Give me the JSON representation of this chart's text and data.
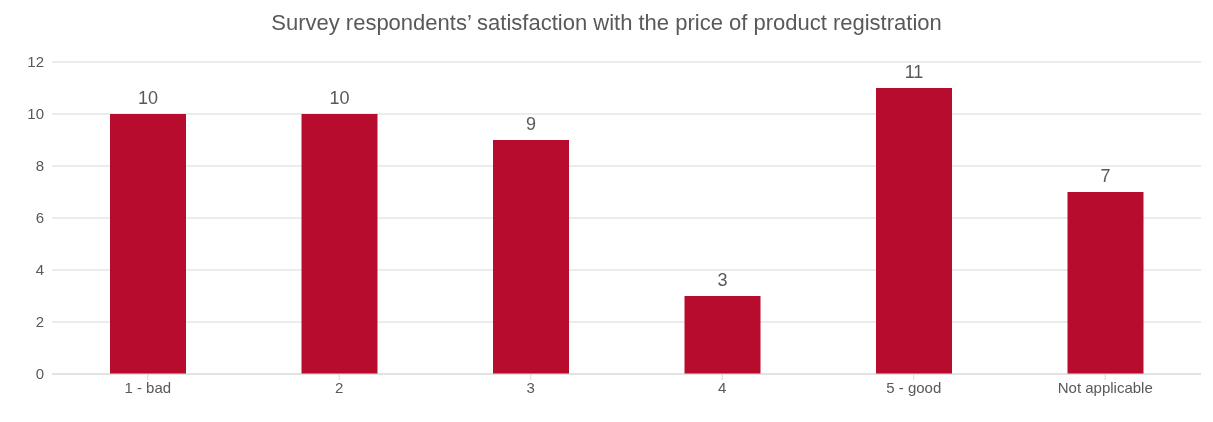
{
  "chart_data": {
    "type": "bar",
    "title": "Survey respondents’ satisfaction with the price of product registration",
    "categories": [
      "1 - bad",
      "2",
      "3",
      "4",
      "5 - good",
      "Not applicable"
    ],
    "values": [
      10,
      10,
      9,
      3,
      11,
      7
    ],
    "color": "#b80c2f",
    "ylim": [
      0,
      12
    ],
    "yticks": [
      0,
      2,
      4,
      6,
      8,
      10,
      12
    ],
    "grid": "y",
    "data_labels": true
  }
}
